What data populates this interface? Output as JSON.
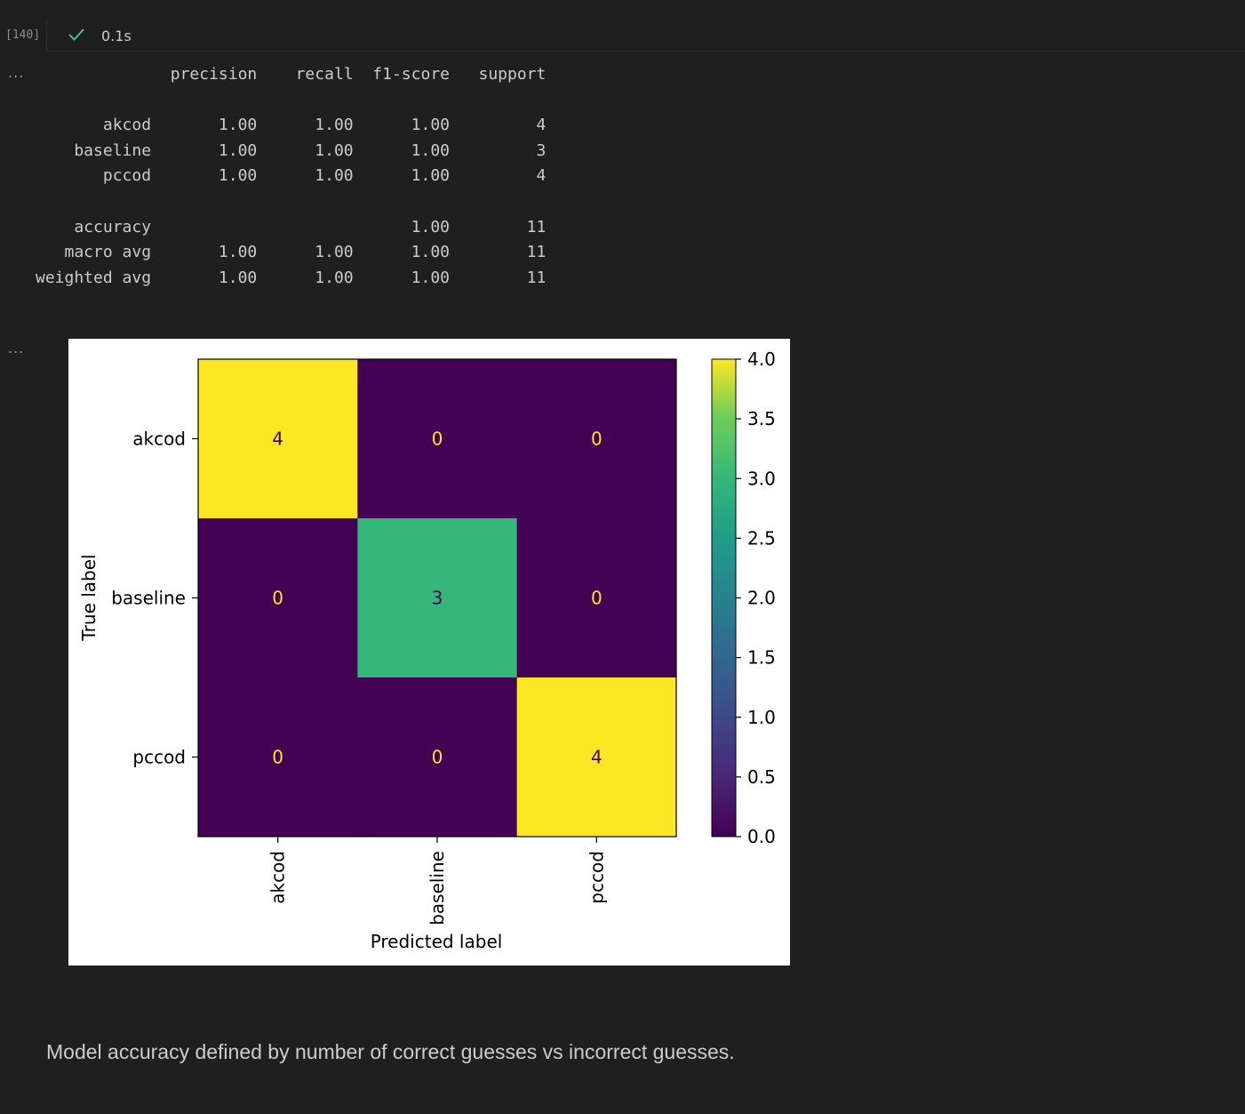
{
  "execution": {
    "count": "[140]",
    "status_icon": "checkmark-icon",
    "duration": "0.1s",
    "success_color": "#4ec9b0"
  },
  "outputs": [
    {
      "more_label": "..."
    },
    {
      "more_label": "..."
    }
  ],
  "classification_report": {
    "headers": [
      "precision",
      "recall",
      "f1-score",
      "support"
    ],
    "rows": [
      {
        "label": "akcod",
        "precision": "1.00",
        "recall": "1.00",
        "f1": "1.00",
        "support": "4"
      },
      {
        "label": "baseline",
        "precision": "1.00",
        "recall": "1.00",
        "f1": "1.00",
        "support": "3"
      },
      {
        "label": "pccod",
        "precision": "1.00",
        "recall": "1.00",
        "f1": "1.00",
        "support": "4"
      }
    ],
    "summary": [
      {
        "label": "accuracy",
        "precision": "",
        "recall": "",
        "f1": "1.00",
        "support": "11"
      },
      {
        "label": "macro avg",
        "precision": "1.00",
        "recall": "1.00",
        "f1": "1.00",
        "support": "11"
      },
      {
        "label": "weighted avg",
        "precision": "1.00",
        "recall": "1.00",
        "f1": "1.00",
        "support": "11"
      }
    ]
  },
  "chart_data": {
    "type": "heatmap",
    "title": "",
    "xlabel": "Predicted label",
    "ylabel": "True label",
    "x_categories": [
      "akcod",
      "baseline",
      "pccod"
    ],
    "y_categories": [
      "akcod",
      "baseline",
      "pccod"
    ],
    "values": [
      [
        4,
        0,
        0
      ],
      [
        0,
        3,
        0
      ],
      [
        0,
        0,
        4
      ]
    ],
    "colormap": "viridis",
    "colorbar": {
      "range": [
        0.0,
        4.0
      ],
      "ticks": [
        "0.0",
        "0.5",
        "1.0",
        "1.5",
        "2.0",
        "2.5",
        "3.0",
        "3.5",
        "4.0"
      ]
    },
    "colors": {
      "low": "#440154",
      "mid_3": "#5ec962",
      "high": "#fde725",
      "text_on_low": "#fde725",
      "text_on_high": "#440154"
    }
  },
  "markdown": {
    "text": "Model accuracy defined by number of correct guesses vs incorrect guesses."
  }
}
